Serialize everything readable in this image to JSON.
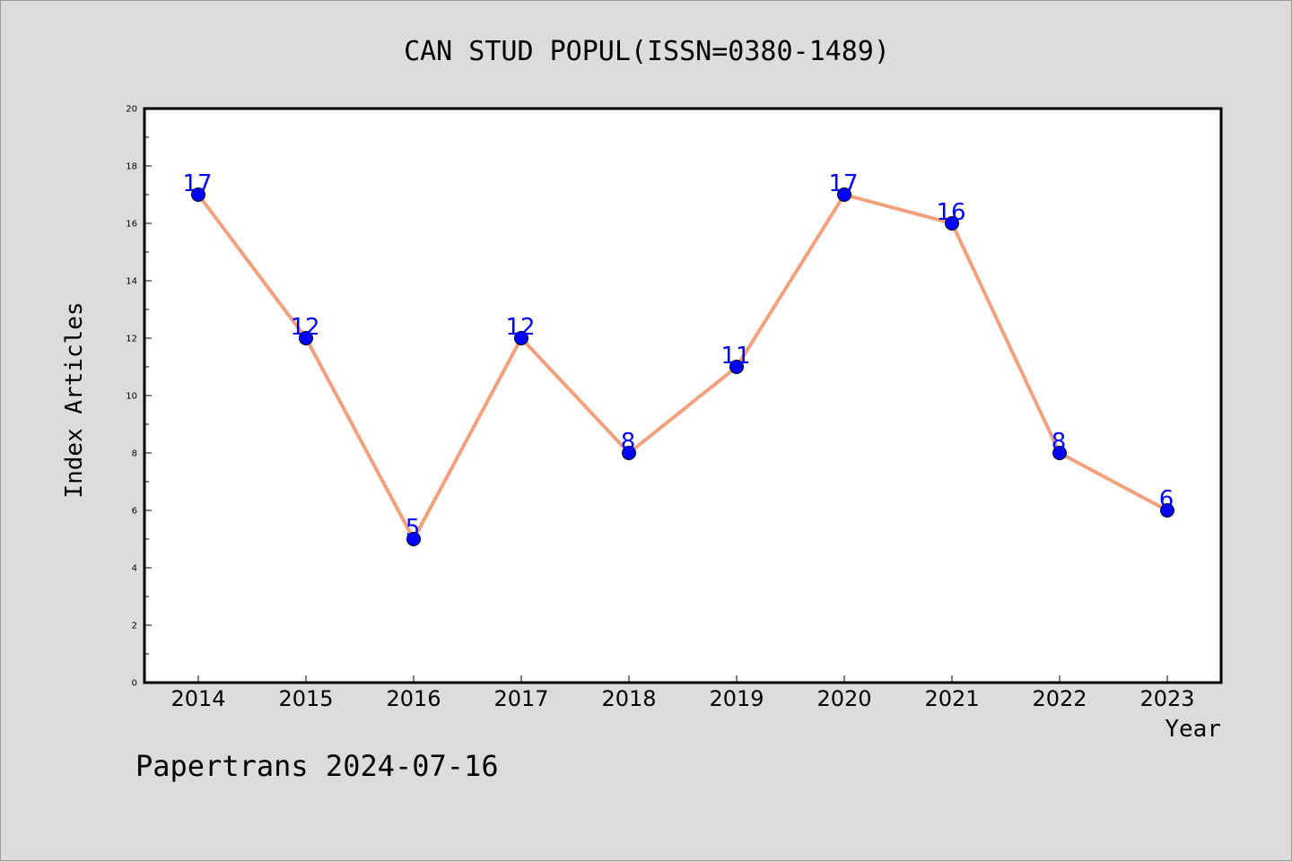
{
  "chart_data": {
    "type": "line",
    "title": "CAN STUD POPUL(ISSN=0380-1489)",
    "xlabel": "Year",
    "ylabel": "Index Articles",
    "categories": [
      "2014",
      "2015",
      "2016",
      "2017",
      "2018",
      "2019",
      "2020",
      "2021",
      "2022",
      "2023"
    ],
    "values": [
      17,
      12,
      5,
      12,
      8,
      11,
      17,
      16,
      8,
      6
    ],
    "ylim": [
      0,
      20
    ],
    "yticks": [
      0,
      2,
      4,
      6,
      8,
      10,
      12,
      14,
      16,
      18,
      20
    ],
    "grid": false,
    "line_color": "#f4a07c",
    "marker_color": "#0000ff",
    "label_color": "#0000ff"
  },
  "footer": {
    "credit": "Papertrans 2024-07-16"
  }
}
